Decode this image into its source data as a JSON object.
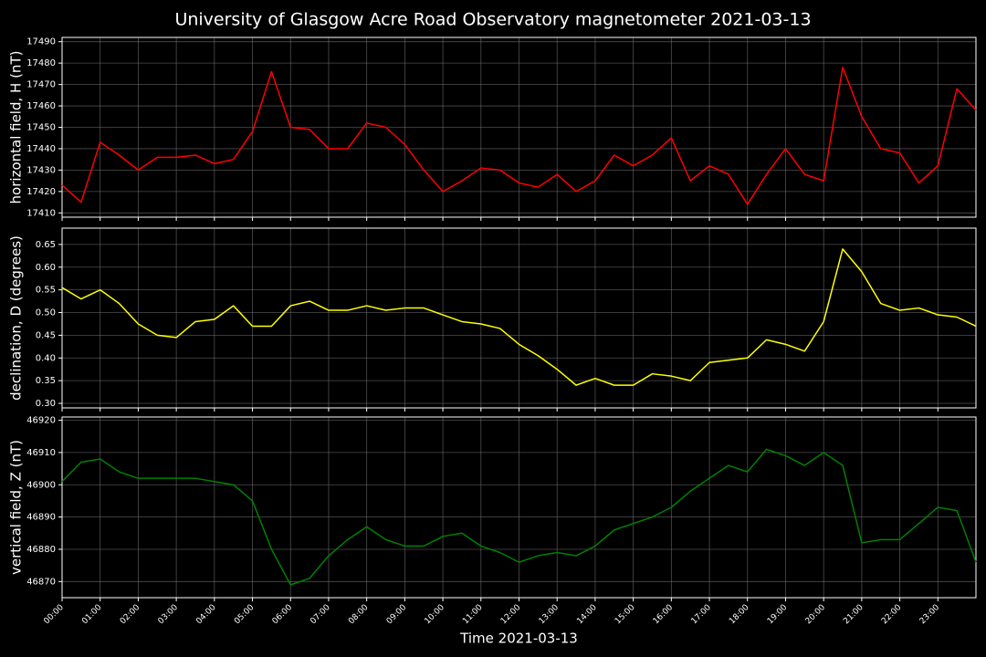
{
  "title": "University of Glasgow Acre Road Observatory magnetometer 2021-03-13",
  "chart_data": [
    {
      "type": "line",
      "ylabel": "horizontal field, H (nT)",
      "color": "#ff0000",
      "grid": true,
      "x": [
        0,
        0.5,
        1,
        1.5,
        2,
        2.5,
        3,
        3.5,
        4,
        4.5,
        5,
        5.5,
        6,
        6.5,
        7,
        7.5,
        8,
        8.5,
        9,
        9.5,
        10,
        10.5,
        11,
        11.5,
        12,
        12.5,
        13,
        13.5,
        14,
        14.5,
        15,
        15.5,
        16,
        16.5,
        17,
        17.5,
        18,
        18.5,
        19,
        19.5,
        20,
        20.5,
        21,
        21.5,
        22,
        22.5,
        23,
        23.5,
        24
      ],
      "values": [
        17423,
        17415,
        17443,
        17437,
        17430,
        17436,
        17436,
        17437,
        17433,
        17435,
        17448,
        17476,
        17450,
        17449,
        17440,
        17440,
        17452,
        17450,
        17442,
        17430,
        17420,
        17425,
        17431,
        17430,
        17424,
        17422,
        17428,
        17420,
        17425,
        17437,
        17432,
        17437,
        17445,
        17425,
        17432,
        17428,
        17414,
        17428,
        17440,
        17428,
        17425,
        17478,
        17455,
        17440,
        17438,
        17424,
        17432,
        17468,
        17458
      ],
      "xlim": [
        0,
        24
      ],
      "xticks": [
        0,
        1,
        2,
        3,
        4,
        5,
        6,
        7,
        8,
        9,
        10,
        11,
        12,
        13,
        14,
        15,
        16,
        17,
        18,
        19,
        20,
        21,
        22,
        23
      ],
      "ylim": [
        17408,
        17492
      ],
      "yticks": [
        17410,
        17420,
        17430,
        17440,
        17450,
        17460,
        17470,
        17480,
        17490
      ]
    },
    {
      "type": "line",
      "ylabel": "declination, D (degrees)",
      "color": "#ffff00",
      "grid": true,
      "x": [
        0,
        0.5,
        1,
        1.5,
        2,
        2.5,
        3,
        3.5,
        4,
        4.5,
        5,
        5.5,
        6,
        6.5,
        7,
        7.5,
        8,
        8.5,
        9,
        9.5,
        10,
        10.5,
        11,
        11.5,
        12,
        12.5,
        13,
        13.5,
        14,
        14.5,
        15,
        15.5,
        16,
        16.5,
        17,
        17.5,
        18,
        18.5,
        19,
        19.5,
        20,
        20.5,
        21,
        21.5,
        22,
        22.5,
        23,
        23.5,
        24
      ],
      "values": [
        0.555,
        0.53,
        0.55,
        0.52,
        0.475,
        0.45,
        0.445,
        0.48,
        0.485,
        0.515,
        0.47,
        0.47,
        0.515,
        0.525,
        0.505,
        0.505,
        0.515,
        0.505,
        0.51,
        0.51,
        0.495,
        0.48,
        0.475,
        0.465,
        0.43,
        0.405,
        0.375,
        0.34,
        0.355,
        0.34,
        0.34,
        0.365,
        0.36,
        0.35,
        0.39,
        0.395,
        0.4,
        0.44,
        0.43,
        0.415,
        0.48,
        0.64,
        0.59,
        0.52,
        0.505,
        0.51,
        0.495,
        0.49,
        0.47
      ],
      "xlim": [
        0,
        24
      ],
      "xticks": [
        0,
        1,
        2,
        3,
        4,
        5,
        6,
        7,
        8,
        9,
        10,
        11,
        12,
        13,
        14,
        15,
        16,
        17,
        18,
        19,
        20,
        21,
        22,
        23
      ],
      "ylim": [
        0.29,
        0.686
      ],
      "yticks": [
        {
          "value": 0.3,
          "label": "0.30"
        },
        0.35,
        {
          "value": 0.4,
          "label": "0.40"
        },
        0.45,
        {
          "value": 0.5,
          "label": "0.50"
        },
        0.55,
        {
          "value": 0.6,
          "label": "0.60"
        },
        0.65
      ]
    },
    {
      "type": "line",
      "ylabel": "vertical field, Z (nT)",
      "xlabel": "Time 2021-03-13",
      "color": "#008000",
      "grid": true,
      "x": [
        0,
        0.5,
        1,
        1.5,
        2,
        2.5,
        3,
        3.5,
        4,
        4.5,
        5,
        5.5,
        6,
        6.5,
        7,
        7.5,
        8,
        8.5,
        9,
        9.5,
        10,
        10.5,
        11,
        11.5,
        12,
        12.5,
        13,
        13.5,
        14,
        14.5,
        15,
        15.5,
        16,
        16.5,
        17,
        17.5,
        18,
        18.5,
        19,
        19.5,
        20,
        20.5,
        21,
        21.5,
        22,
        22.5,
        23,
        23.5,
        24
      ],
      "values": [
        46901,
        46907,
        46908,
        46904,
        46902,
        46902,
        46902,
        46902,
        46901,
        46900,
        46895,
        46880,
        46869,
        46871,
        46878,
        46883,
        46887,
        46883,
        46881,
        46881,
        46884,
        46885,
        46881,
        46879,
        46876,
        46878,
        46879,
        46878,
        46881,
        46886,
        46888,
        46890,
        46893,
        46898,
        46902,
        46906,
        46904,
        46911,
        46909,
        46906,
        46910,
        46906,
        46882,
        46883,
        46883,
        46888,
        46893,
        46892,
        46876
      ],
      "xlim": [
        0,
        24
      ],
      "xticks": [
        {
          "value": 0,
          "label": "00:00"
        },
        {
          "value": 1,
          "label": "01:00"
        },
        {
          "value": 2,
          "label": "02:00"
        },
        {
          "value": 3,
          "label": "03:00"
        },
        {
          "value": 4,
          "label": "04:00"
        },
        {
          "value": 5,
          "label": "05:00"
        },
        {
          "value": 6,
          "label": "06:00"
        },
        {
          "value": 7,
          "label": "07:00"
        },
        {
          "value": 8,
          "label": "08:00"
        },
        {
          "value": 9,
          "label": "09:00"
        },
        {
          "value": 10,
          "label": "10:00"
        },
        {
          "value": 11,
          "label": "11:00"
        },
        {
          "value": 12,
          "label": "12:00"
        },
        {
          "value": 13,
          "label": "13:00"
        },
        {
          "value": 14,
          "label": "14:00"
        },
        {
          "value": 15,
          "label": "15:00"
        },
        {
          "value": 16,
          "label": "16:00"
        },
        {
          "value": 17,
          "label": "17:00"
        },
        {
          "value": 18,
          "label": "18:00"
        },
        {
          "value": 19,
          "label": "19:00"
        },
        {
          "value": 20,
          "label": "20:00"
        },
        {
          "value": 21,
          "label": "21:00"
        },
        {
          "value": 22,
          "label": "22:00"
        },
        {
          "value": 23,
          "label": "23:00"
        }
      ],
      "ylim": [
        46865,
        46921
      ],
      "yticks": [
        46870,
        46880,
        46890,
        46900,
        46910,
        46920
      ]
    }
  ]
}
